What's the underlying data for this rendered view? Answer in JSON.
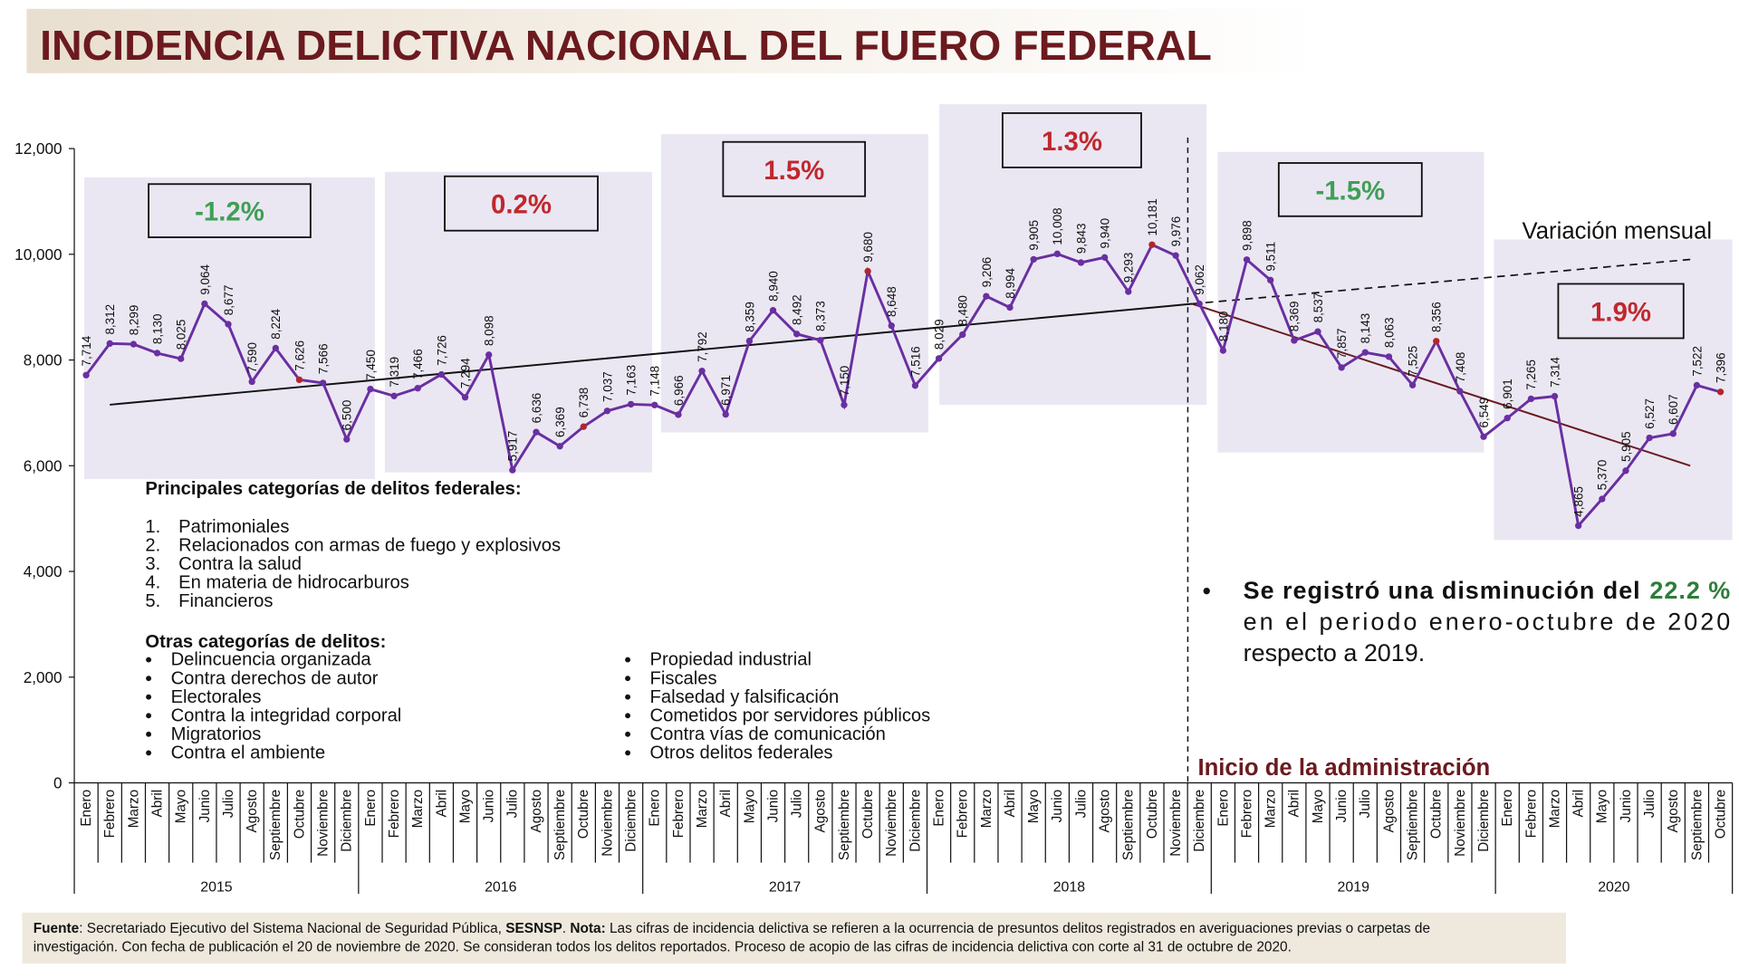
{
  "chart_data": {
    "type": "line",
    "title": "INCIDENCIA DELICTIVA NACIONAL DEL FUERO FEDERAL",
    "categories": [
      "Enero",
      "Febrero",
      "Marzo",
      "Abril",
      "Mayo",
      "Junio",
      "Julio",
      "Agosto",
      "Septiembre",
      "Octubre",
      "Noviembre",
      "Diciembre",
      "Enero",
      "Febrero",
      "Marzo",
      "Abril",
      "Mayo",
      "Junio",
      "Julio",
      "Agosto",
      "Septiembre",
      "Octubre",
      "Noviembre",
      "Diciembre",
      "Enero",
      "Febrero",
      "Marzo",
      "Abril",
      "Mayo",
      "Junio",
      "Julio",
      "Agosto",
      "Septiembre",
      "Octubre",
      "Noviembre",
      "Diciembre",
      "Enero",
      "Febrero",
      "Marzo",
      "Abril",
      "Mayo",
      "Junio",
      "Julio",
      "Agosto",
      "Septiembre",
      "Octubre",
      "Noviembre",
      "Diciembre",
      "Enero",
      "Febrero",
      "Marzo",
      "Abril",
      "Mayo",
      "Junio",
      "Julio",
      "Agosto",
      "Septiembre",
      "Octubre",
      "Noviembre",
      "Diciembre",
      "Enero",
      "Febrero",
      "Marzo",
      "Abril",
      "Mayo",
      "Junio",
      "Julio",
      "Agosto",
      "Septiembre",
      "Octubre"
    ],
    "years": [
      "2015",
      "2016",
      "2017",
      "2018",
      "2019",
      "2020"
    ],
    "values": [
      7714,
      8312,
      8299,
      8130,
      8025,
      9064,
      8677,
      7590,
      8224,
      7626,
      7566,
      6500,
      7450,
      7319,
      7466,
      7726,
      7294,
      8098,
      5917,
      6636,
      6369,
      6738,
      7037,
      7163,
      7148,
      6966,
      7792,
      6971,
      8359,
      8940,
      8492,
      8373,
      7150,
      9680,
      8648,
      7516,
      8029,
      8480,
      9206,
      8994,
      9905,
      10008,
      9843,
      9940,
      9293,
      10181,
      9976,
      9062,
      8180,
      9898,
      9511,
      8369,
      8537,
      7857,
      8143,
      8063,
      7525,
      8356,
      7408,
      6549,
      6901,
      7265,
      7314,
      4865,
      5370,
      5905,
      6527,
      6607,
      7522,
      7396
    ],
    "value_labels": [
      "7,714",
      "8,312",
      "8,299",
      "8,130",
      "8,025",
      "9,064",
      "8,677",
      "7,590",
      "8,224",
      "7,626",
      "7,566",
      "6,500",
      "7,450",
      "7,319",
      "7,466",
      "7,726",
      "7,294",
      "8,098",
      "5,917",
      "6,636",
      "6,369",
      "6,738",
      "7,037",
      "7,163",
      "7,148",
      "6,966",
      "7,792",
      "6,971",
      "8,359",
      "8,940",
      "8,492",
      "8,373",
      "7,150",
      "9,680",
      "8,648",
      "7,516",
      "8,029",
      "8,480",
      "9,206",
      "8,994",
      "9,905",
      "10,008",
      "9,843",
      "9,940",
      "9,293",
      "10,181",
      "9,976",
      "9,062",
      "8,180",
      "9,898",
      "9,511",
      "8,369",
      "8,537",
      "7,857",
      "8,143",
      "8,063",
      "7,525",
      "8,356",
      "7,408",
      "6,549",
      "6,901",
      "7,265",
      "7,314",
      "4,865",
      "5,370",
      "5,905",
      "6,527",
      "6,607",
      "7,522",
      "7,396"
    ],
    "color": "#6a2fa0",
    "highlight_color": "#b3262b",
    "ylim": [
      0,
      12000
    ],
    "yticks": [
      0,
      {
        "value": 2000,
        "label": "2,000"
      },
      {
        "value": 4000,
        "label": "4,000"
      },
      {
        "value": 6000,
        "label": "6,000"
      },
      {
        "value": 8000,
        "label": "8,000"
      },
      {
        "value": 10000,
        "label": "10,000"
      },
      {
        "value": 12000,
        "label": "12,000"
      }
    ],
    "grid": false,
    "annual_variation": [
      {
        "label": "-1.2%",
        "color": "#3f9f55"
      },
      {
        "label": "0.2%",
        "color": "#c0282d"
      },
      {
        "label": "1.5%",
        "color": "#c0282d"
      },
      {
        "label": "1.3%",
        "color": "#c0282d"
      },
      {
        "label": "-1.5%",
        "color": "#3f9f55"
      },
      {
        "label": "1.9%",
        "color": "#c0282d"
      }
    ],
    "trend_label": "Variación mensual",
    "administration_label": "Inicio de la administración",
    "principal": {
      "heading": "Principales categorías de delitos federales:",
      "items": [
        {
          "n": "1.",
          "text": "Patrimoniales"
        },
        {
          "n": "2.",
          "text": "Relacionados con armas de fuego y explosivos"
        },
        {
          "n": "3.",
          "text": "Contra la salud"
        },
        {
          "n": "4.",
          "text": "En materia de hidrocarburos"
        },
        {
          "n": "5.",
          "text": "Financieros"
        }
      ]
    },
    "others": {
      "heading": "Otras categorías de delitos:",
      "items": [
        "Delincuencia organizada",
        "Contra derechos de autor",
        "Electorales",
        "Contra la integridad corporal",
        "Migratorios",
        "Contra el ambiente",
        "Propiedad industrial",
        "Fiscales",
        "Falsedad y falsificación",
        "Cometidos por servidores públicos",
        "Contra vías de comunicación",
        "Otros delitos federales"
      ]
    },
    "summary": {
      "lead": "Se registró una disminución del",
      "value": "22.2 %",
      "value_color": "#2e7d3a",
      "lines": [
        "en el periodo enero-octubre de 2020",
        "respecto a 2019."
      ]
    },
    "source": {
      "line1": [
        {
          "text": "Fuente",
          "bold": true
        },
        {
          "text": ": Secretariado Ejecutivo del Sistema Nacional de Seguridad Pública, ",
          "bold": false
        },
        {
          "text": "SESNSP",
          "bold": true
        },
        {
          "text": ". ",
          "bold": false
        },
        {
          "text": "Nota:",
          "bold": true
        },
        {
          "text": " Las cifras de incidencia delictiva se refieren a la ocurrencia de presuntos delitos registrados en averiguaciones previas o carpetas de",
          "bold": false
        }
      ],
      "line2": "investigación. Con fecha de publicación el 20 de noviembre de 2020. Se consideran todos los delitos reportados. Proceso de acopio de las cifras de incidencia delictiva con corte al 31 de octubre de 2020."
    }
  }
}
